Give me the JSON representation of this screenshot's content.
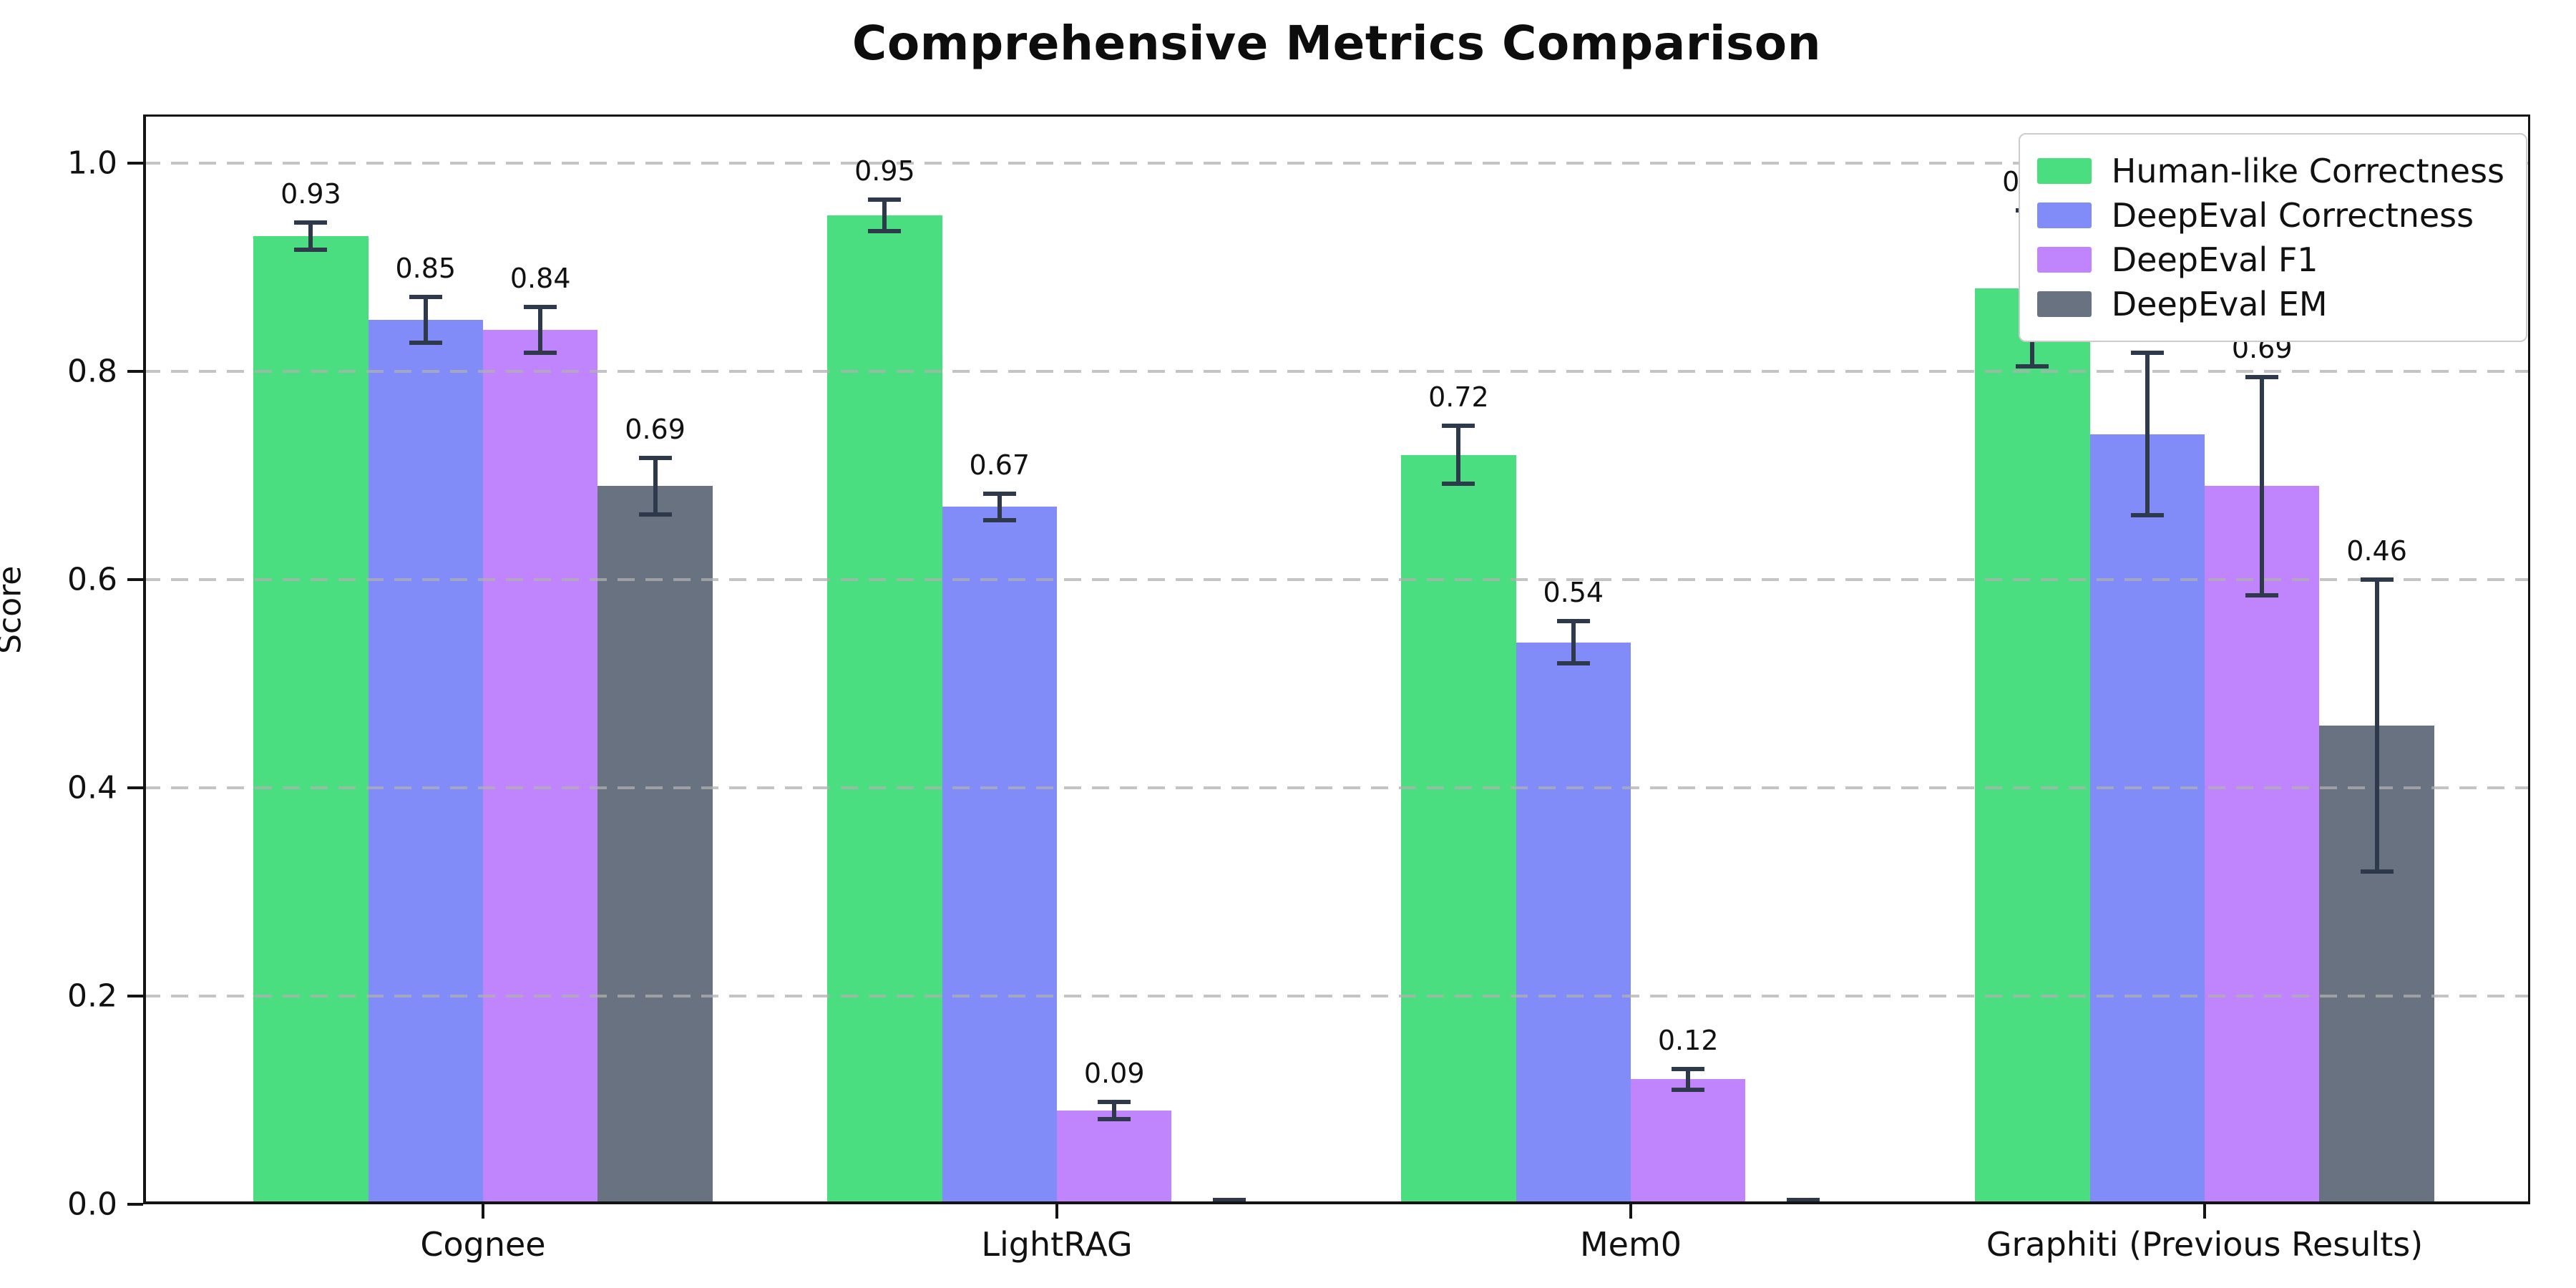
{
  "chart_data": {
    "type": "bar",
    "title": "Comprehensive Metrics Comparison",
    "xlabel": "",
    "ylabel": "Score",
    "categories": [
      "Cognee",
      "LightRAG",
      "Mem0",
      "Graphiti (Previous Results)"
    ],
    "yticks": [
      {
        "label": "0.0",
        "value": 0.0
      },
      {
        "label": "0.2",
        "value": 0.2
      },
      {
        "label": "0.4",
        "value": 0.4
      },
      {
        "label": "0.6",
        "value": 0.6
      },
      {
        "label": "0.8",
        "value": 0.8
      },
      {
        "label": "1.0",
        "value": 1.0
      }
    ],
    "ylim": [
      0,
      1.047
    ],
    "grid": "horizontal dashed, drawn over bars",
    "legend_position": "upper right",
    "error_bar_color": "#2e3a4c",
    "series": [
      {
        "name": "Human-like Correctness",
        "color": "#4ade80",
        "values": [
          0.93,
          0.95,
          0.72,
          0.88
        ],
        "errors": [
          0.013,
          0.015,
          0.028,
          0.075
        ],
        "bar_labels": [
          "0.93",
          "0.95",
          "0.72",
          "0.88"
        ]
      },
      {
        "name": "DeepEval Correctness",
        "color": "#818cf8",
        "values": [
          0.85,
          0.67,
          0.54,
          0.74
        ],
        "errors": [
          0.022,
          0.013,
          0.02,
          0.078
        ],
        "bar_labels": [
          "0.85",
          "0.67",
          "0.54",
          "0.74"
        ]
      },
      {
        "name": "DeepEval F1",
        "color": "#c084fc",
        "values": [
          0.84,
          0.09,
          0.12,
          0.69
        ],
        "errors": [
          0.022,
          0.008,
          0.01,
          0.105
        ],
        "bar_labels": [
          "0.84",
          "0.09",
          "0.12",
          "0.69"
        ]
      },
      {
        "name": "DeepEval EM",
        "color": "#687281",
        "values": [
          0.69,
          0.0,
          0.0,
          0.46
        ],
        "errors": [
          0.027,
          0.004,
          0.004,
          0.14
        ],
        "bar_labels": [
          "0.69",
          "",
          "",
          "0.46"
        ]
      }
    ]
  }
}
